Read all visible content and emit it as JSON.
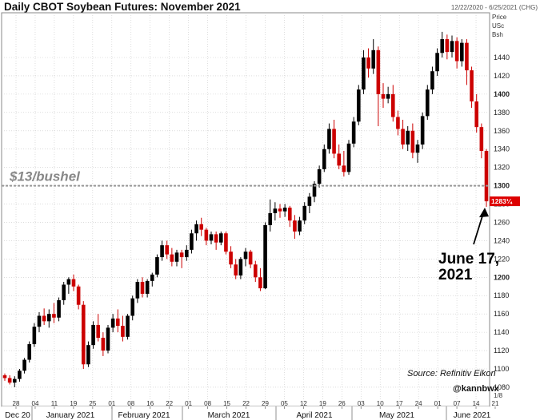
{
  "chart_data": {
    "type": "candlestick",
    "title": "Daily CBOT Soybean Futures: November 2021",
    "date_range": "12/22/2020 - 6/25/2021 (CHG)",
    "axis_unit": [
      "Price",
      "USc",
      "Bsh"
    ],
    "ylim": [
      1080,
      1470
    ],
    "yticks": [
      1080,
      1100,
      1120,
      1140,
      1160,
      1180,
      1200,
      1220,
      1240,
      1260,
      1280,
      1300,
      1320,
      1340,
      1360,
      1380,
      1400,
      1420,
      1440
    ],
    "bold_ticks": [
      1200,
      1300,
      1400
    ],
    "day_ticks": [
      "28",
      "04",
      "11",
      "19",
      "25",
      "01",
      "08",
      "16",
      "22",
      "01",
      "08",
      "15",
      "22",
      "29",
      "05",
      "12",
      "19",
      "26",
      "03",
      "10",
      "17",
      "24",
      "01",
      "07",
      "14",
      "21"
    ],
    "month_labels": [
      "Dec 20",
      "January 2021",
      "February 2021",
      "March 2021",
      "April 2021",
      "May 2021",
      "June 2021"
    ],
    "reference_line": {
      "value": 1300,
      "label": "$13/bushel"
    },
    "last_price": "1283¼",
    "source": "Source: Refinitiv Eikon",
    "handle": "@kannbwx",
    "scale_note": "1/8",
    "annotation": "June 17, 2021",
    "colors": {
      "up": "#000000",
      "down": "#cc0000",
      "grid": "#c8c8c8",
      "reference": "#999999",
      "badge": "#dd0000"
    },
    "candles": [
      [
        1093,
        1095,
        1087,
        1090
      ],
      [
        1090,
        1093,
        1083,
        1085
      ],
      [
        1085,
        1092,
        1080,
        1089
      ],
      [
        1089,
        1100,
        1086,
        1098
      ],
      [
        1098,
        1112,
        1095,
        1110
      ],
      [
        1110,
        1130,
        1107,
        1127
      ],
      [
        1127,
        1150,
        1124,
        1146
      ],
      [
        1146,
        1162,
        1140,
        1158
      ],
      [
        1158,
        1166,
        1148,
        1152
      ],
      [
        1152,
        1165,
        1145,
        1160
      ],
      [
        1160,
        1172,
        1150,
        1156
      ],
      [
        1156,
        1178,
        1152,
        1175
      ],
      [
        1175,
        1195,
        1170,
        1192
      ],
      [
        1192,
        1200,
        1182,
        1198
      ],
      [
        1198,
        1203,
        1185,
        1190
      ],
      [
        1190,
        1192,
        1165,
        1170
      ],
      [
        1170,
        1174,
        1100,
        1105
      ],
      [
        1105,
        1130,
        1102,
        1126
      ],
      [
        1126,
        1152,
        1122,
        1148
      ],
      [
        1148,
        1160,
        1130,
        1134
      ],
      [
        1134,
        1140,
        1114,
        1120
      ],
      [
        1120,
        1148,
        1117,
        1145
      ],
      [
        1145,
        1160,
        1140,
        1155
      ],
      [
        1155,
        1165,
        1140,
        1147
      ],
      [
        1147,
        1158,
        1130,
        1135
      ],
      [
        1135,
        1160,
        1132,
        1158
      ],
      [
        1158,
        1180,
        1153,
        1177
      ],
      [
        1177,
        1198,
        1172,
        1195
      ],
      [
        1195,
        1200,
        1178,
        1182
      ],
      [
        1182,
        1198,
        1178,
        1196
      ],
      [
        1196,
        1205,
        1190,
        1203
      ],
      [
        1203,
        1225,
        1200,
        1222
      ],
      [
        1222,
        1240,
        1218,
        1235
      ],
      [
        1235,
        1240,
        1220,
        1225
      ],
      [
        1225,
        1232,
        1212,
        1217
      ],
      [
        1217,
        1230,
        1212,
        1227
      ],
      [
        1227,
        1230,
        1210,
        1222
      ],
      [
        1222,
        1235,
        1218,
        1230
      ],
      [
        1230,
        1252,
        1226,
        1248
      ],
      [
        1248,
        1262,
        1240,
        1258
      ],
      [
        1258,
        1265,
        1245,
        1252
      ],
      [
        1252,
        1254,
        1235,
        1240
      ],
      [
        1240,
        1250,
        1236,
        1247
      ],
      [
        1247,
        1250,
        1230,
        1238
      ],
      [
        1238,
        1250,
        1235,
        1248
      ],
      [
        1248,
        1250,
        1225,
        1228
      ],
      [
        1228,
        1234,
        1210,
        1214
      ],
      [
        1214,
        1220,
        1198,
        1202
      ],
      [
        1202,
        1222,
        1198,
        1220
      ],
      [
        1220,
        1232,
        1212,
        1228
      ],
      [
        1228,
        1230,
        1210,
        1214
      ],
      [
        1214,
        1218,
        1195,
        1200
      ],
      [
        1200,
        1210,
        1185,
        1188
      ],
      [
        1188,
        1260,
        1187,
        1257
      ],
      [
        1257,
        1285,
        1250,
        1270
      ],
      [
        1270,
        1282,
        1262,
        1275
      ],
      [
        1275,
        1280,
        1265,
        1272
      ],
      [
        1272,
        1280,
        1266,
        1276
      ],
      [
        1276,
        1278,
        1255,
        1262
      ],
      [
        1262,
        1268,
        1242,
        1250
      ],
      [
        1250,
        1266,
        1246,
        1262
      ],
      [
        1262,
        1282,
        1258,
        1278
      ],
      [
        1278,
        1292,
        1270,
        1288
      ],
      [
        1288,
        1305,
        1282,
        1302
      ],
      [
        1302,
        1322,
        1298,
        1318
      ],
      [
        1318,
        1345,
        1315,
        1340
      ],
      [
        1340,
        1368,
        1335,
        1362
      ],
      [
        1362,
        1372,
        1330,
        1335
      ],
      [
        1335,
        1345,
        1318,
        1322
      ],
      [
        1322,
        1338,
        1310,
        1315
      ],
      [
        1315,
        1350,
        1312,
        1346
      ],
      [
        1346,
        1375,
        1342,
        1370
      ],
      [
        1370,
        1410,
        1366,
        1405
      ],
      [
        1405,
        1448,
        1400,
        1440
      ],
      [
        1440,
        1450,
        1418,
        1428
      ],
      [
        1428,
        1460,
        1422,
        1448
      ],
      [
        1448,
        1452,
        1365,
        1400
      ],
      [
        1400,
        1412,
        1385,
        1395
      ],
      [
        1395,
        1408,
        1390,
        1400
      ],
      [
        1400,
        1410,
        1370,
        1375
      ],
      [
        1375,
        1382,
        1355,
        1362
      ],
      [
        1362,
        1372,
        1340,
        1345
      ],
      [
        1345,
        1365,
        1338,
        1360
      ],
      [
        1360,
        1368,
        1330,
        1336
      ],
      [
        1336,
        1350,
        1325,
        1345
      ],
      [
        1345,
        1380,
        1340,
        1376
      ],
      [
        1376,
        1410,
        1372,
        1405
      ],
      [
        1405,
        1430,
        1400,
        1425
      ],
      [
        1425,
        1450,
        1420,
        1445
      ],
      [
        1445,
        1468,
        1440,
        1460
      ],
      [
        1460,
        1465,
        1438,
        1446
      ],
      [
        1446,
        1464,
        1440,
        1458
      ],
      [
        1458,
        1462,
        1428,
        1436
      ],
      [
        1436,
        1460,
        1430,
        1456
      ],
      [
        1456,
        1460,
        1410,
        1426
      ],
      [
        1426,
        1430,
        1385,
        1392
      ],
      [
        1392,
        1400,
        1358,
        1364
      ],
      [
        1364,
        1368,
        1330,
        1338
      ],
      [
        1338,
        1340,
        1277,
        1283
      ]
    ]
  }
}
